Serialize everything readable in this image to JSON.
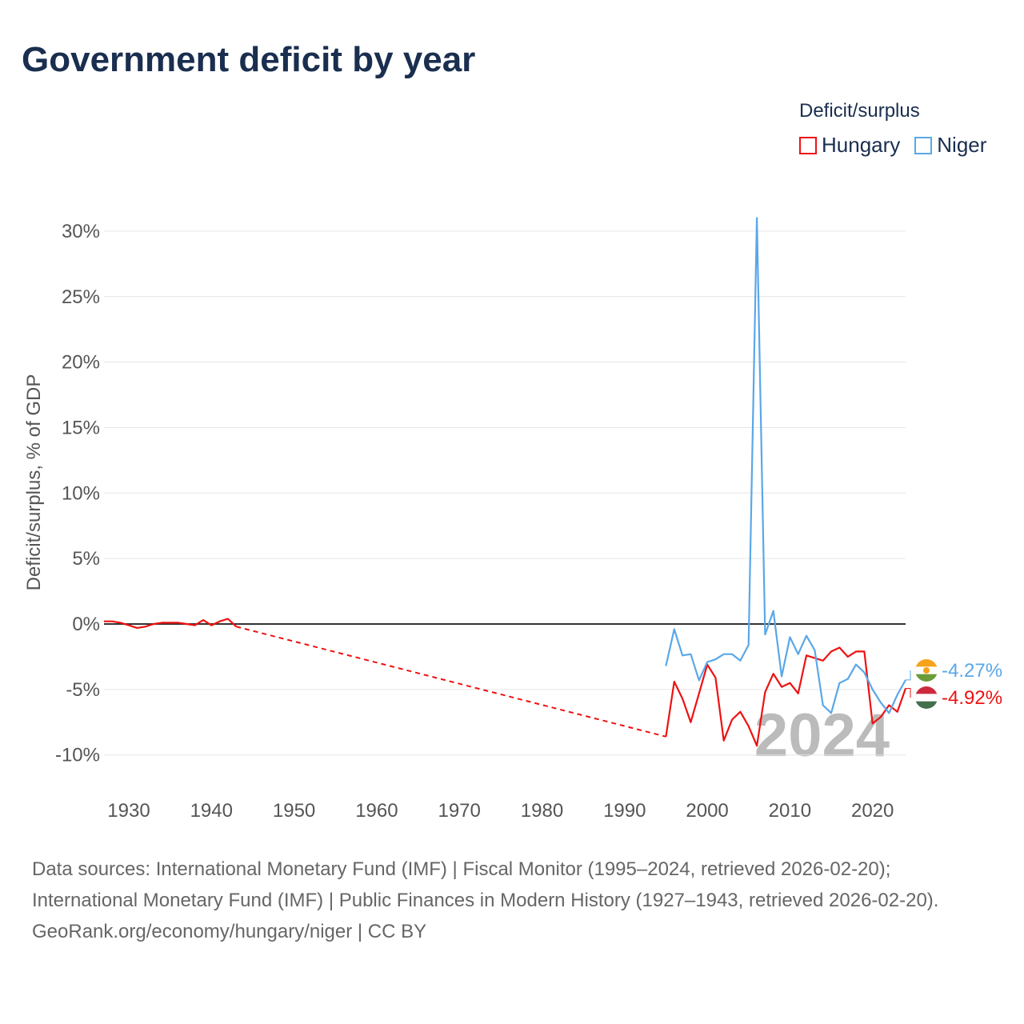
{
  "title": "Government deficit by year",
  "legend": {
    "title": "Deficit/surplus",
    "items": [
      {
        "label": "Hungary",
        "color": "#ee1111"
      },
      {
        "label": "Niger",
        "color": "#5aa7e8"
      }
    ]
  },
  "footer": {
    "line1": "Data sources: International Monetary Fund (IMF) | Fiscal Monitor (1995–2024, retrieved 2026-02-20); International Monetary Fund (IMF) | Public Finances in Modern History (1927–1943, retrieved 2026-02-20).",
    "line2": "GeoRank.org/economy/hungary/niger | CC BY"
  },
  "chart_data": {
    "type": "line",
    "title": "Government deficit by year",
    "ylabel": "Deficit/surplus, % of GDP",
    "xlim": [
      1927,
      2024
    ],
    "ylim": [
      -12.5,
      31
    ],
    "xticks": [
      1930,
      1940,
      1950,
      1960,
      1970,
      1980,
      1990,
      2000,
      2010,
      2020
    ],
    "yticks": [
      30,
      25,
      20,
      15,
      10,
      5,
      0,
      -5,
      -10
    ],
    "ytick_labels": [
      "30%",
      "25%",
      "20%",
      "15%",
      "10%",
      "5%",
      "0%",
      "-5%",
      "-10%"
    ],
    "year_watermark": "2024",
    "series": [
      {
        "name": "Hungary",
        "color": "#ee1111",
        "end_label": "-4.92%",
        "x": [
          1927,
          1928,
          1929,
          1930,
          1931,
          1932,
          1933,
          1934,
          1935,
          1936,
          1937,
          1938,
          1939,
          1940,
          1941,
          1942,
          1943,
          1995,
          1996,
          1997,
          1998,
          1999,
          2000,
          2001,
          2002,
          2003,
          2004,
          2005,
          2006,
          2007,
          2008,
          2009,
          2010,
          2011,
          2012,
          2013,
          2014,
          2015,
          2016,
          2017,
          2018,
          2019,
          2020,
          2021,
          2022,
          2023,
          2024
        ],
        "y": [
          0.2,
          0.2,
          0.1,
          -0.1,
          -0.3,
          -0.2,
          0.0,
          0.1,
          0.1,
          0.1,
          0.0,
          -0.1,
          0.3,
          -0.1,
          0.2,
          0.4,
          -0.2,
          -8.6,
          -4.4,
          -5.7,
          -7.5,
          -5.3,
          -3.1,
          -4.1,
          -8.9,
          -7.3,
          -6.7,
          -7.8,
          -9.3,
          -5.2,
          -3.8,
          -4.8,
          -4.5,
          -5.3,
          -2.4,
          -2.6,
          -2.8,
          -2.1,
          -1.8,
          -2.5,
          -2.1,
          -2.1,
          -7.6,
          -7.1,
          -6.2,
          -6.7,
          -4.92
        ]
      },
      {
        "name": "Niger",
        "color": "#5aa7e8",
        "end_label": "-4.27%",
        "x": [
          1995,
          1996,
          1997,
          1998,
          1999,
          2000,
          2001,
          2002,
          2003,
          2004,
          2005,
          2006,
          2007,
          2008,
          2009,
          2010,
          2011,
          2012,
          2013,
          2014,
          2015,
          2016,
          2017,
          2018,
          2019,
          2020,
          2021,
          2022,
          2023,
          2024
        ],
        "y": [
          -3.2,
          -0.4,
          -2.4,
          -2.3,
          -4.3,
          -2.9,
          -2.7,
          -2.3,
          -2.3,
          -2.8,
          -1.6,
          31.0,
          -0.8,
          1.0,
          -4.0,
          -1.0,
          -2.3,
          -0.9,
          -2.0,
          -6.2,
          -6.8,
          -4.5,
          -4.2,
          -3.1,
          -3.7,
          -5.0,
          -6.0,
          -6.8,
          -5.4,
          -4.27
        ]
      }
    ]
  }
}
